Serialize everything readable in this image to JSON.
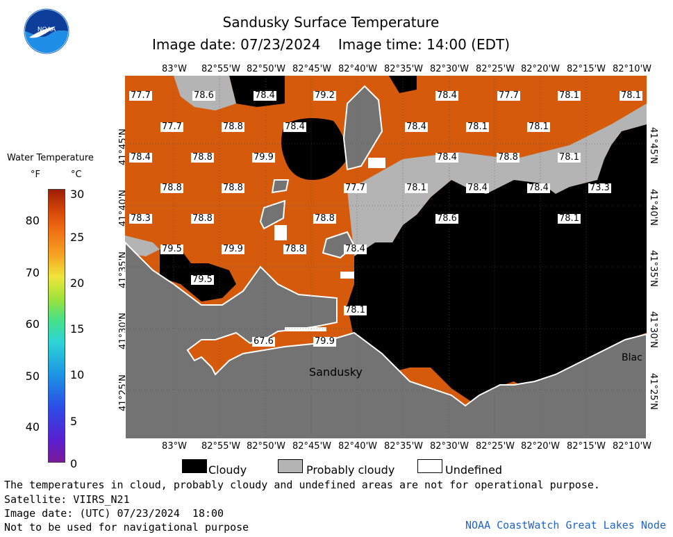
{
  "header": {
    "title": "Sandusky Surface Temperature",
    "image_date_line": "Image date: 07/23/2024    Image time: 14:00 (EDT)"
  },
  "logo": {
    "text": "NOAA",
    "icon": "noaa-logo-icon"
  },
  "legend": {
    "title": "Water Temperature",
    "unit_f": "°F",
    "unit_c": "°C",
    "f_ticks": [
      "80",
      "70",
      "60",
      "50",
      "40"
    ],
    "c_ticks": [
      "30",
      "25",
      "20",
      "15",
      "10",
      "5",
      "0"
    ]
  },
  "map": {
    "top_lon_labels": [
      "83°W",
      "82°55'W",
      "82°50'W",
      "82°45'W",
      "82°40'W",
      "82°35'W",
      "82°30'W",
      "82°25'W",
      "82°20'W",
      "82°15'W",
      "82°10'W"
    ],
    "bottom_lon_labels": [
      "83°W",
      "82°55'W",
      "82°50'W",
      "82°45'W",
      "82°40'W",
      "82°35'W",
      "82°30'W",
      "82°25'W",
      "82°20'W",
      "82°15'W",
      "82°10'W"
    ],
    "lat_labels": [
      "41°45'N",
      "41°40'N",
      "41°35'N",
      "41°30'N",
      "41°25'N"
    ],
    "place_sandusky": "Sandusky",
    "place_right": "Blac",
    "temperatures": [
      "77.7",
      "78.6",
      "78.4",
      "79.2",
      "78.4",
      "77.7",
      "78.1",
      "78.1",
      "77.7",
      "78.8",
      "78.4",
      "78.4",
      "78.1",
      "78.1",
      "78.4",
      "78.8",
      "79.9",
      "78.4",
      "78.8",
      "78.1",
      "78.8",
      "78.8",
      "77.7",
      "78.1",
      "78.4",
      "78.4",
      "73.3",
      "78.3",
      "78.8",
      "78.8",
      "78.6",
      "78.1",
      "79.5",
      "79.9",
      "78.8",
      "78.4",
      "79.5",
      "78.1",
      "67.6",
      "79.9"
    ]
  },
  "key": {
    "cloudy": "Cloudy",
    "probably_cloudy": "Probably cloudy",
    "undefined": "Undefined"
  },
  "footer": {
    "line1": "The temperatures in cloud, probably cloudy and undefined areas are not for operational purpose.",
    "line2": "Satellite: VIIRS_N21",
    "line3": "Image date: (UTC) 07/23/2024  18:00",
    "line4": "Not to be used for navigational purpose",
    "credit": "NOAA CoastWatch Great Lakes Node"
  },
  "colors": {
    "water": "#d55a0c",
    "cloudy": "#000000",
    "probably_cloudy": "#b4b4b4",
    "land": "#737373",
    "undefined": "#ffffff"
  }
}
